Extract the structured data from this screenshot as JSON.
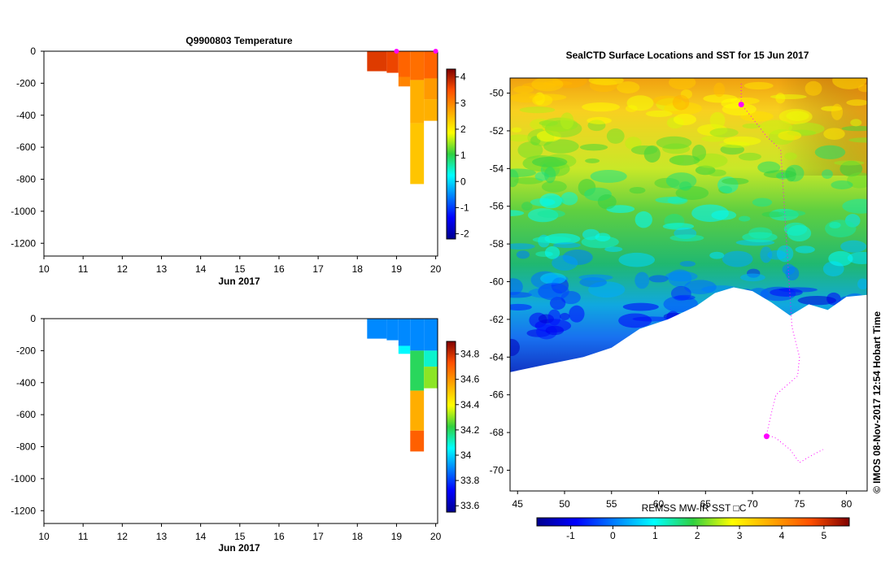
{
  "chart_data": [
    {
      "type": "heatmap",
      "title": "Q9900803  Temperature",
      "xlabel": "Jun 2017",
      "x_ticks": [
        "10",
        "11",
        "12",
        "13",
        "14",
        "15",
        "16",
        "17",
        "18",
        "19",
        "20"
      ],
      "xlim": [
        10,
        20.05
      ],
      "ylim": [
        -1280,
        0
      ],
      "y_ticks": [
        0,
        -200,
        -400,
        -600,
        -800,
        -1000,
        -1200
      ],
      "colorbar": {
        "ticks": [
          -2,
          -1,
          0,
          1,
          2,
          3,
          4
        ],
        "range": [
          -2.2,
          4.3
        ]
      },
      "markers_at_surface": [
        19.0,
        20.0
      ],
      "profiles": [
        {
          "x0": 18.25,
          "x1": 18.75,
          "layers": [
            {
              "z0": 0,
              "z1": -125,
              "v": 3.7
            }
          ]
        },
        {
          "x0": 18.75,
          "x1": 19.05,
          "layers": [
            {
              "z0": 0,
              "z1": -135,
              "v": 3.6
            }
          ]
        },
        {
          "x0": 19.05,
          "x1": 19.35,
          "layers": [
            {
              "z0": 0,
              "z1": -160,
              "v": 3.3
            },
            {
              "z0": -160,
              "z1": -220,
              "v": 3.0
            }
          ]
        },
        {
          "x0": 19.35,
          "x1": 19.7,
          "layers": [
            {
              "z0": 0,
              "z1": -180,
              "v": 3.2
            },
            {
              "z0": -180,
              "z1": -450,
              "v": 2.6
            },
            {
              "z0": -450,
              "z1": -830,
              "v": 2.4
            }
          ]
        },
        {
          "x0": 19.7,
          "x1": 20.05,
          "layers": [
            {
              "z0": 0,
              "z1": -170,
              "v": 3.3
            },
            {
              "z0": -170,
              "z1": -300,
              "v": 2.8
            },
            {
              "z0": -300,
              "z1": -435,
              "v": 2.6
            }
          ]
        }
      ]
    },
    {
      "type": "heatmap",
      "title": "",
      "xlabel": "Jun 2017",
      "x_ticks": [
        "10",
        "11",
        "12",
        "13",
        "14",
        "15",
        "16",
        "17",
        "18",
        "19",
        "20"
      ],
      "xlim": [
        10,
        20.05
      ],
      "ylim": [
        -1280,
        0
      ],
      "y_ticks": [
        0,
        -200,
        -400,
        -600,
        -800,
        -1000,
        -1200
      ],
      "colorbar": {
        "ticks": [
          33.6,
          33.8,
          34,
          34.2,
          34.4,
          34.6,
          34.8
        ],
        "range": [
          33.55,
          34.9
        ]
      },
      "profiles": [
        {
          "x0": 18.25,
          "x1": 18.75,
          "layers": [
            {
              "z0": 0,
              "z1": -125,
              "v": 33.9
            }
          ]
        },
        {
          "x0": 18.75,
          "x1": 19.05,
          "layers": [
            {
              "z0": 0,
              "z1": -135,
              "v": 33.9
            }
          ]
        },
        {
          "x0": 19.05,
          "x1": 19.35,
          "layers": [
            {
              "z0": 0,
              "z1": -170,
              "v": 33.9
            },
            {
              "z0": -170,
              "z1": -220,
              "v": 34.05
            }
          ]
        },
        {
          "x0": 19.35,
          "x1": 19.7,
          "layers": [
            {
              "z0": 0,
              "z1": -200,
              "v": 33.9
            },
            {
              "z0": -200,
              "z1": -450,
              "v": 34.2
            },
            {
              "z0": -450,
              "z1": -700,
              "v": 34.55
            },
            {
              "z0": -700,
              "z1": -830,
              "v": 34.7
            }
          ]
        },
        {
          "x0": 19.7,
          "x1": 20.05,
          "layers": [
            {
              "z0": 0,
              "z1": -200,
              "v": 33.9
            },
            {
              "z0": -200,
              "z1": -300,
              "v": 34.1
            },
            {
              "z0": -300,
              "z1": -435,
              "v": 34.3
            }
          ]
        }
      ]
    },
    {
      "type": "heatmap",
      "title": "SealCTD Surface Locations and SST for 15 Jun 2017",
      "xlabel": "",
      "ylabel": "",
      "x_ticks": [
        45,
        50,
        55,
        60,
        65,
        70,
        75,
        80
      ],
      "y_ticks": [
        -50,
        -52,
        -54,
        -56,
        -58,
        -60,
        -62,
        -64,
        -66,
        -68,
        -70
      ],
      "xlim": [
        44.2,
        82.2
      ],
      "ylim": [
        -71.1,
        -49.2
      ],
      "colorbar_label": "REMSS MW-IR SST □C",
      "colorbar": {
        "ticks": [
          -1,
          0,
          1,
          2,
          3,
          4,
          5
        ],
        "range": [
          -1.8,
          5.6
        ]
      },
      "sst_temperature_by_latitude": [
        {
          "lat": -49.5,
          "v": 3.4
        },
        {
          "lat": -51,
          "v": 3.0
        },
        {
          "lat": -53,
          "v": 2.2
        },
        {
          "lat": -55,
          "v": 1.7
        },
        {
          "lat": -57,
          "v": 1.2
        },
        {
          "lat": -59,
          "v": 0.4
        },
        {
          "lat": -61,
          "v": -0.6
        },
        {
          "lat": -63,
          "v": -1.3
        }
      ],
      "ice_edge": [
        [
          44.2,
          -64.8
        ],
        [
          48,
          -64.4
        ],
        [
          52,
          -64.0
        ],
        [
          55,
          -63.5
        ],
        [
          58,
          -62.5
        ],
        [
          61,
          -62.0
        ],
        [
          64,
          -61.3
        ],
        [
          66,
          -60.6
        ],
        [
          68,
          -60.3
        ],
        [
          70,
          -60.5
        ],
        [
          72,
          -61.1
        ],
        [
          74,
          -61.8
        ],
        [
          76,
          -61.2
        ],
        [
          78,
          -61.5
        ],
        [
          80,
          -60.8
        ],
        [
          82.2,
          -60.7
        ]
      ],
      "track": [
        [
          68.8,
          -49.5
        ],
        [
          68.8,
          -50.6
        ],
        [
          69.8,
          -51.2
        ],
        [
          71.5,
          -52.3
        ],
        [
          73.0,
          -53.0
        ],
        [
          74.2,
          -62.4
        ],
        [
          75.0,
          -64.0
        ],
        [
          74.8,
          -65.0
        ],
        [
          72.5,
          -66.0
        ],
        [
          72.0,
          -67.0
        ],
        [
          71.5,
          -68.1
        ],
        [
          72.5,
          -68.3
        ],
        [
          74.0,
          -68.9
        ],
        [
          75.0,
          -69.6
        ],
        [
          76.0,
          -69.3
        ],
        [
          77.5,
          -68.9
        ]
      ],
      "surface_locations": [
        [
          68.8,
          -50.6
        ],
        [
          71.5,
          -68.2
        ]
      ],
      "copyright": "©  IMOS 08-Nov-2017 12:54 Hobart Time"
    }
  ],
  "colors": {
    "marker": "#ff00ff",
    "ice": "#ffffff",
    "frame": "#000000"
  }
}
